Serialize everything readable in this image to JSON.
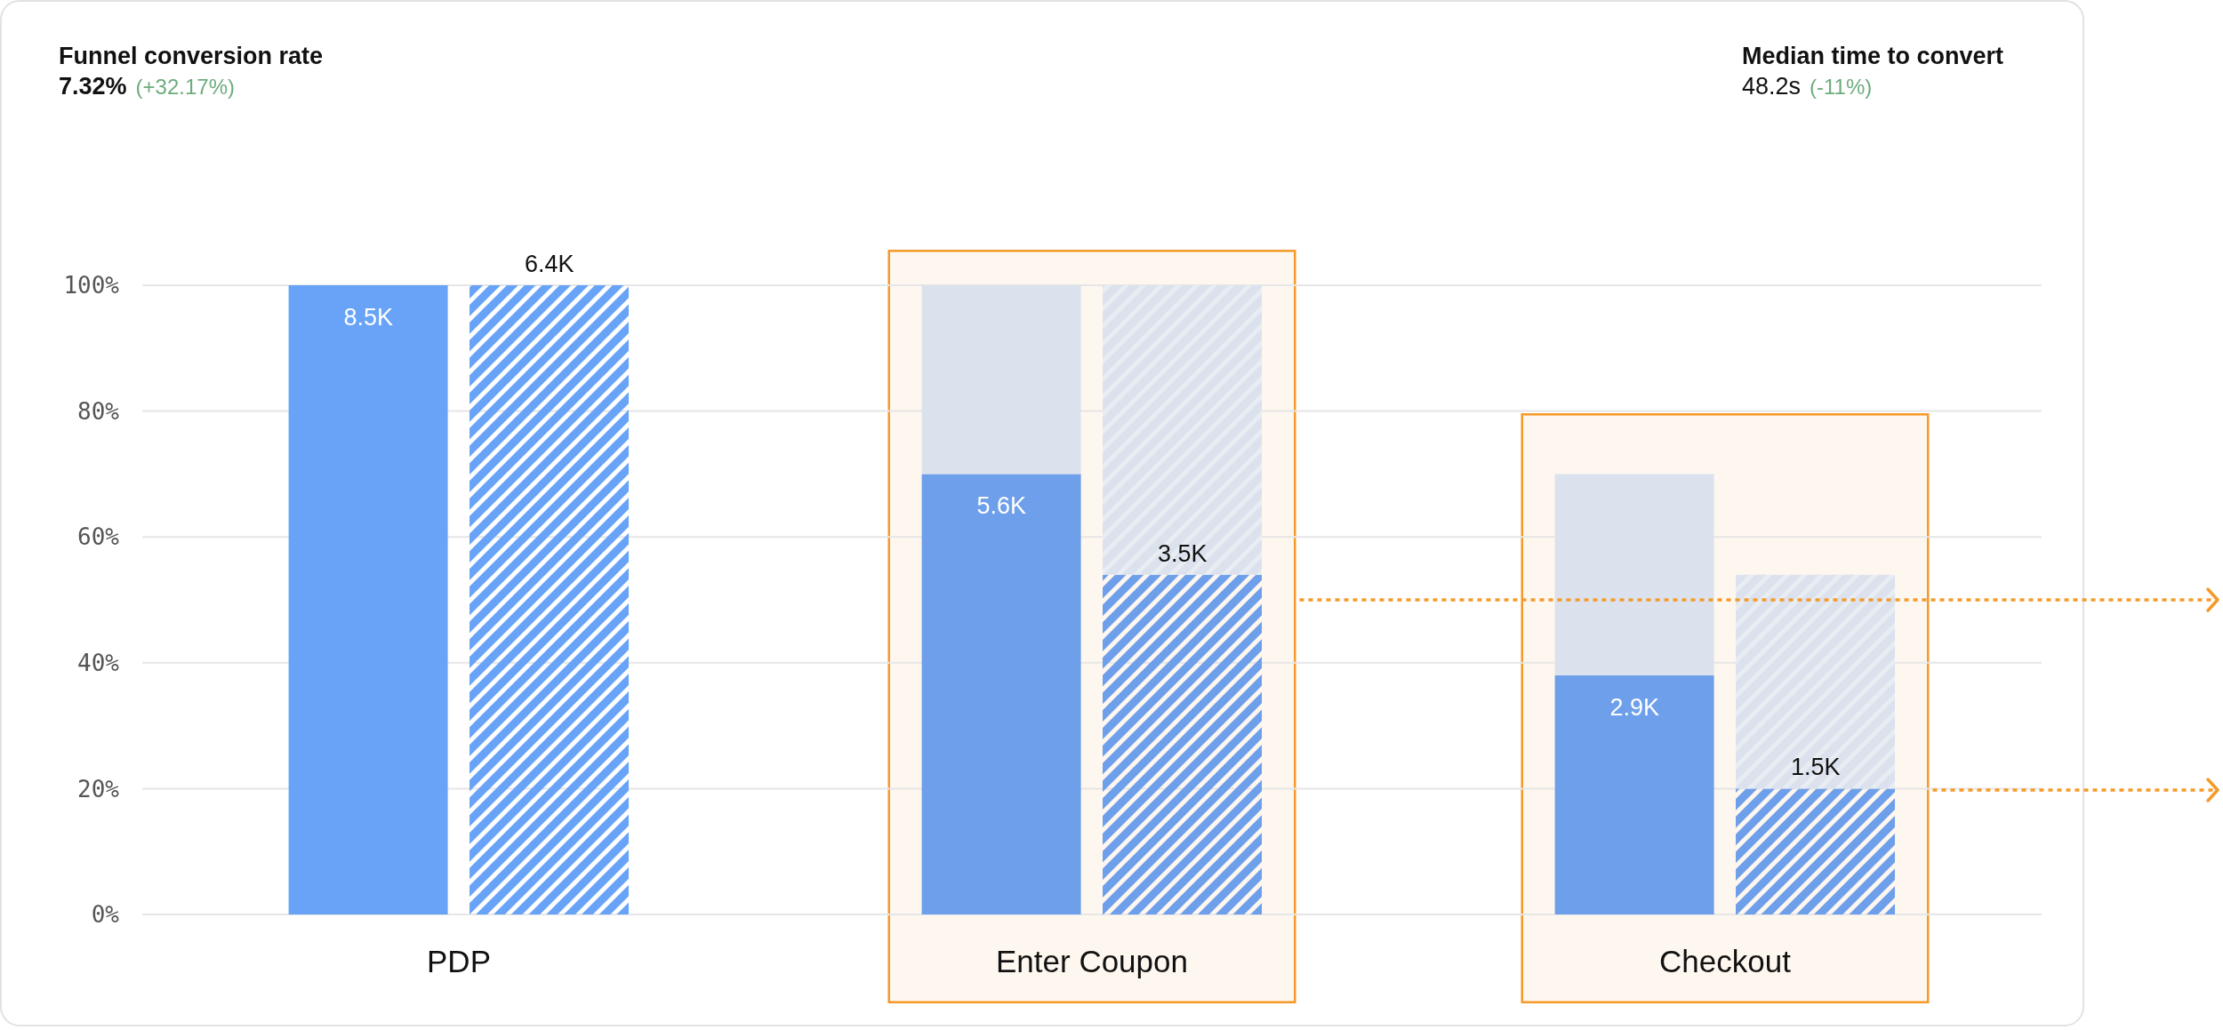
{
  "chart_data": {
    "type": "bar",
    "title": "Funnel conversion rate",
    "annotations": [
      "7.32%",
      "(+32.17%)",
      "Median time to convert",
      "48.2s",
      "(-11%)",
      "8.5K",
      "6.4K",
      "5.6K",
      "3.5K",
      "2.9K",
      "1.5K"
    ],
    "categories": [
      null,
      null,
      null,
      "PDP",
      null,
      null,
      null,
      null,
      null,
      null,
      "Enter Coupon",
      null,
      null,
      null,
      null,
      null,
      null,
      "Checkout",
      null,
      null,
      null
    ],
    "stacked": true,
    "series": [
      {
        "colors": [
          null,
          null,
          "#68a3f8",
          null,
          null,
          null,
          null,
          null,
          null,
          "#6e9fea",
          null,
          null,
          null,
          null,
          null,
          null,
          "#6e9fea",
          null,
          null,
          null,
          null
        ],
        "values": [
          null,
          null,
          100,
          null,
          null,
          null,
          null,
          null,
          null,
          70,
          null,
          null,
          null,
          null,
          null,
          null,
          38,
          null,
          null,
          null,
          null
        ]
      },
      {
        "color": "#dbe2ed",
        "values": [
          null,
          null,
          null,
          null,
          null,
          null,
          null,
          null,
          null,
          30,
          null,
          null,
          null,
          null,
          null,
          null,
          32,
          null,
          null,
          null,
          null
        ]
      },
      {
        "colors": [
          null,
          null,
          null,
          null,
          "#68a3f8",
          null,
          null,
          null,
          null,
          null,
          null,
          "#6e9fea",
          null,
          null,
          null,
          null,
          null,
          null,
          "#6e9fea",
          null,
          null
        ],
        "values": [
          null,
          null,
          null,
          null,
          100,
          null,
          null,
          null,
          null,
          null,
          null,
          54,
          null,
          null,
          null,
          null,
          null,
          null,
          20,
          null,
          null
        ]
      },
      {
        "color": "#dbe2ed",
        "values": [
          null,
          null,
          null,
          null,
          null,
          null,
          null,
          null,
          null,
          null,
          null,
          46,
          null,
          null,
          null,
          null,
          null,
          null,
          34,
          null,
          null
        ]
      }
    ],
    "ref_lines": [
      {
        "axis": "y",
        "value": 50,
        "color": "#f59a28",
        "line_style": "dotted"
      }
    ],
    "ylim": [
      0,
      100
    ],
    "yticks": [
      {
        "value": 0,
        "label": "0%"
      },
      {
        "value": 20,
        "label": "20%"
      },
      {
        "value": 40,
        "label": "40%"
      },
      {
        "value": 60,
        "label": "60%"
      },
      {
        "value": 80,
        "label": "80%"
      },
      {
        "value": 100,
        "label": "100%"
      }
    ],
    "grid": "y"
  }
}
